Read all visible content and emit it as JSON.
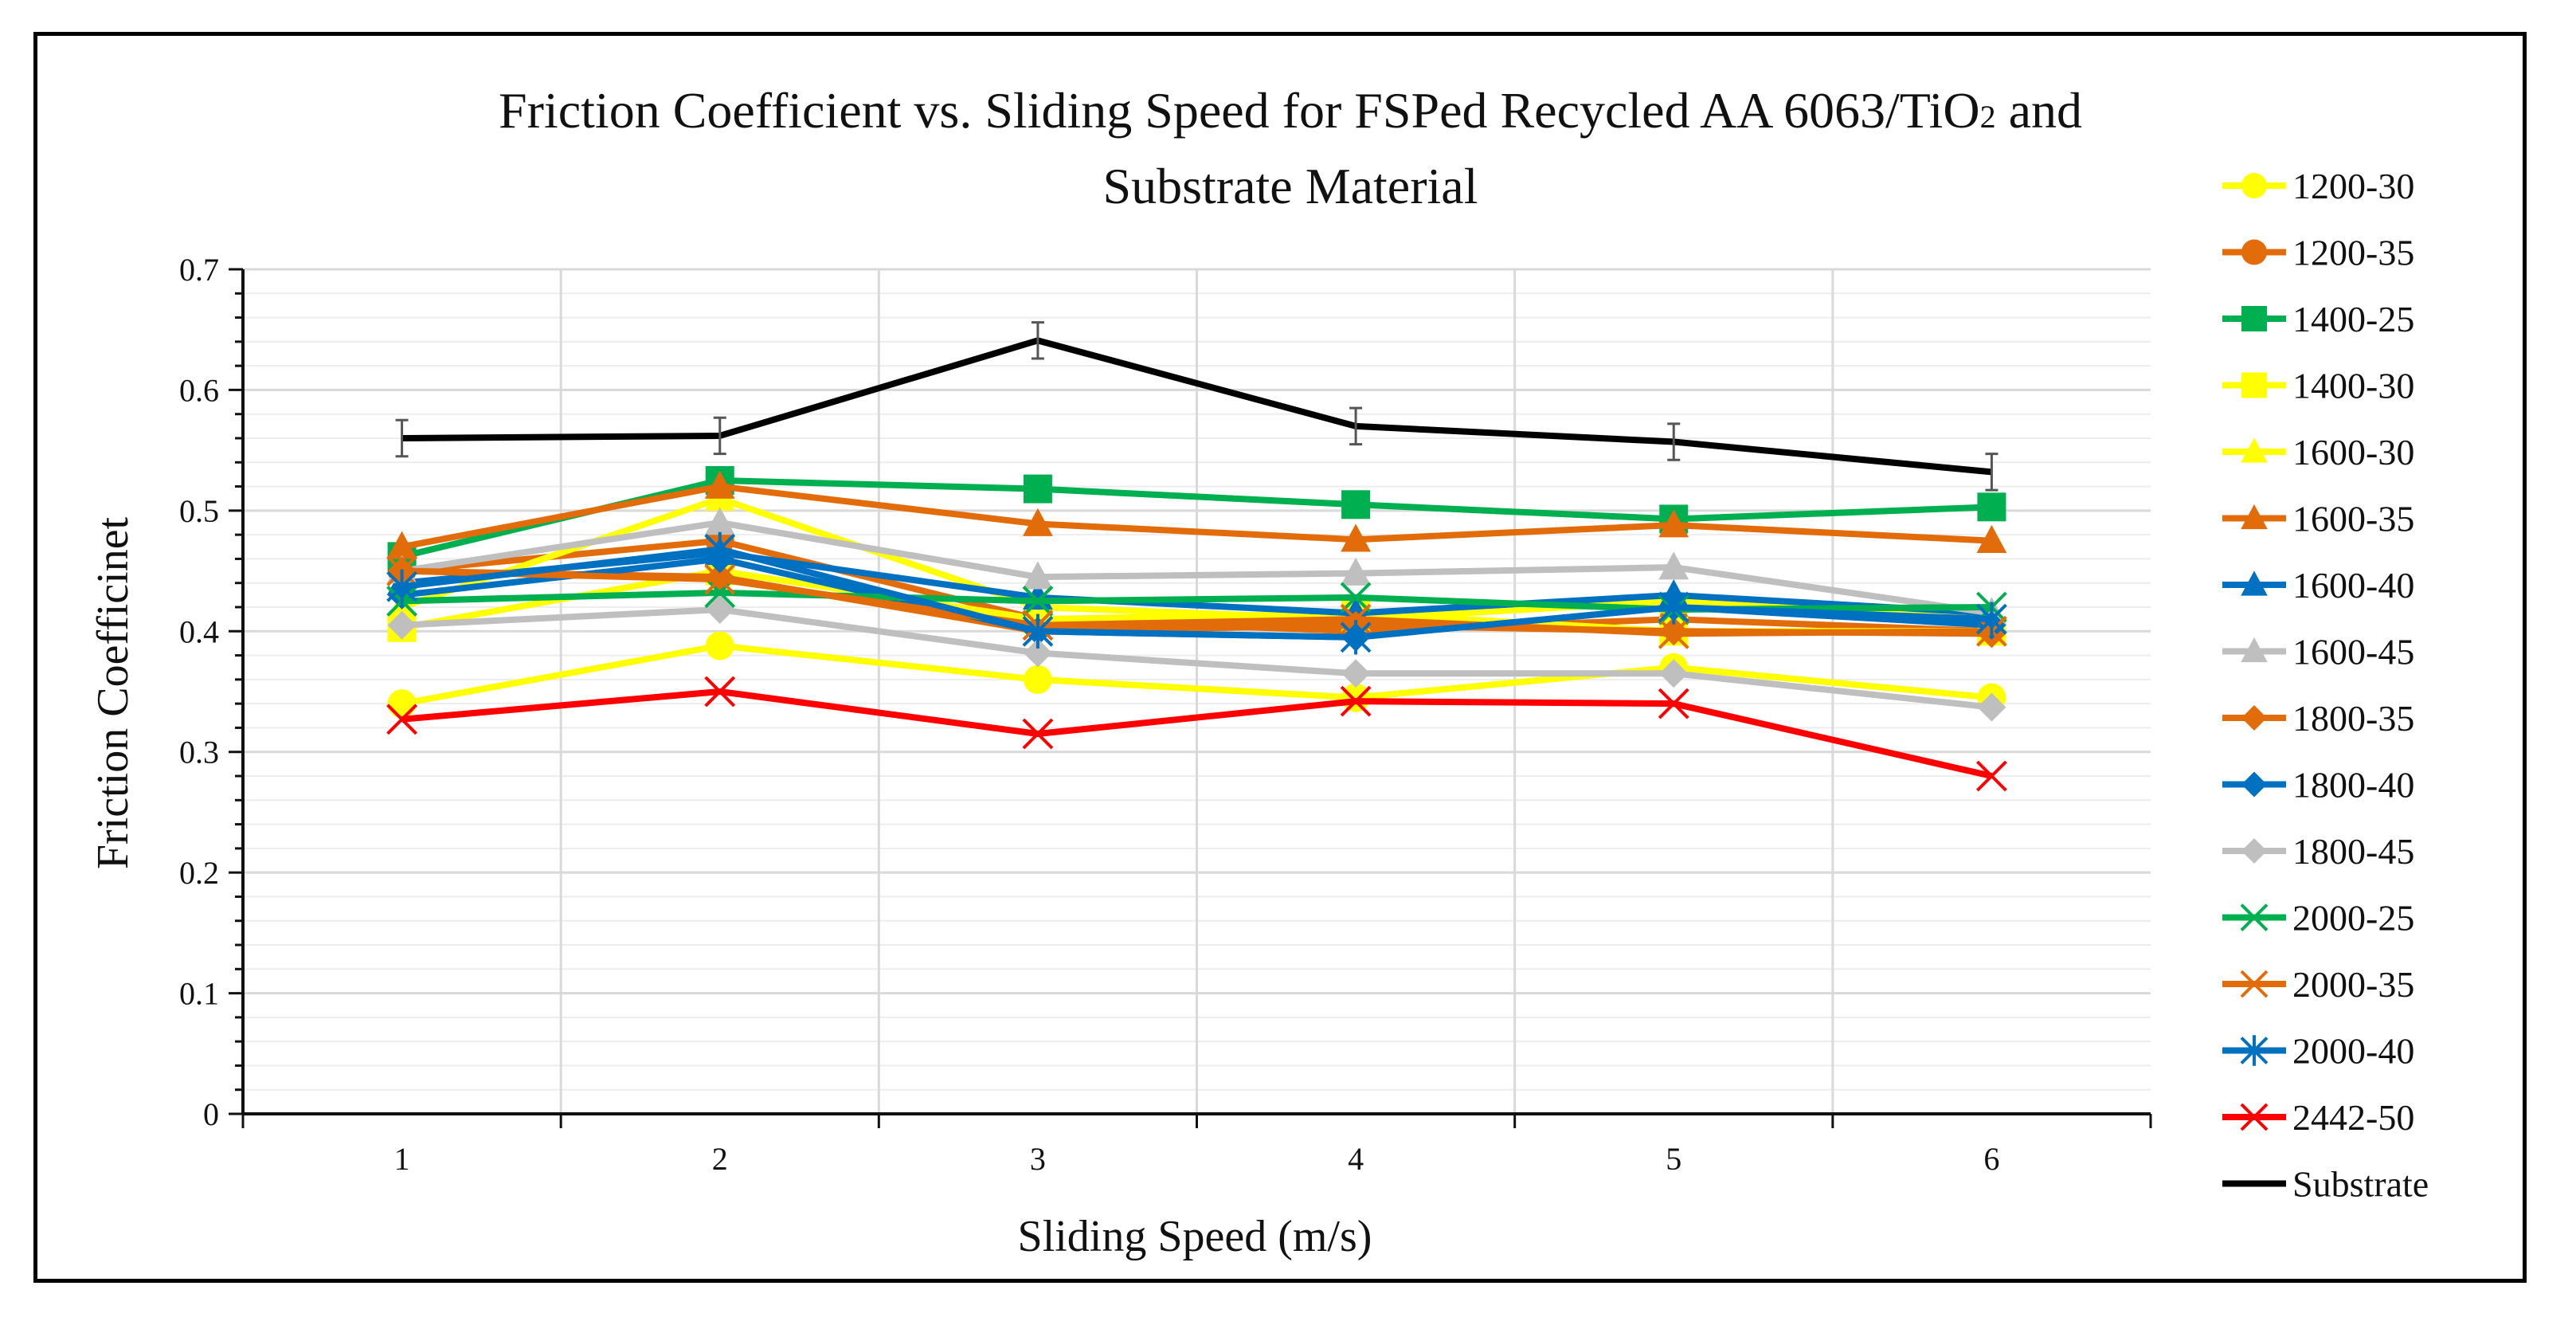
{
  "chart_data": {
    "type": "line",
    "title_line1_pre": "Friction Coefficient vs. Sliding Speed for FSPed Recycled AA 6063/TiO",
    "title_line1_sub": "2",
    "title_line1_post": " and",
    "title_line2": "Substrate Material",
    "xlabel": "Sliding Speed (m/s)",
    "ylabel": "Friction Coefficinet",
    "x": [
      1,
      2,
      3,
      4,
      5,
      6
    ],
    "x_tick_labels": [
      "1",
      "2",
      "3",
      "4",
      "5",
      "6"
    ],
    "ylim": [
      0,
      0.7
    ],
    "y_ticks": [
      0,
      0.1,
      0.2,
      0.3,
      0.4,
      0.5,
      0.6,
      0.7
    ],
    "y_tick_labels": [
      "0",
      "0.1",
      "0.2",
      "0.3",
      "0.4",
      "0.5",
      "0.6",
      "0.7"
    ],
    "grid": true,
    "legend_position": "right",
    "series": [
      {
        "name": "1200-30",
        "color": "#FFFF00",
        "marker": "circle",
        "values": [
          0.34,
          0.388,
          0.36,
          0.345,
          0.37,
          0.345
        ]
      },
      {
        "name": "1200-35",
        "color": "#E36C0A",
        "marker": "circle",
        "values": [
          0.45,
          0.475,
          0.41,
          0.4,
          0.41,
          0.4
        ]
      },
      {
        "name": "1400-25",
        "color": "#00B050",
        "marker": "square",
        "values": [
          0.462,
          0.525,
          0.518,
          0.505,
          0.493,
          0.503
        ]
      },
      {
        "name": "1400-30",
        "color": "#FFFF00",
        "marker": "square",
        "values": [
          0.403,
          0.45,
          0.41,
          0.415,
          0.4,
          0.4
        ]
      },
      {
        "name": "1600-30",
        "color": "#FFFF00",
        "marker": "triangle",
        "values": [
          0.42,
          0.51,
          0.42,
          0.41,
          0.425,
          0.415
        ]
      },
      {
        "name": "1600-35",
        "color": "#E36C0A",
        "marker": "triangle",
        "values": [
          0.47,
          0.52,
          0.489,
          0.476,
          0.488,
          0.475
        ]
      },
      {
        "name": "1600-40",
        "color": "#0070C0",
        "marker": "triangle",
        "values": [
          0.44,
          0.465,
          0.428,
          0.415,
          0.43,
          0.415
        ]
      },
      {
        "name": "1600-45",
        "color": "#BFBFBF",
        "marker": "triangle",
        "values": [
          0.45,
          0.49,
          0.445,
          0.448,
          0.453,
          0.415
        ]
      },
      {
        "name": "1800-35",
        "color": "#E36C0A",
        "marker": "diamond",
        "values": [
          0.45,
          0.445,
          0.4,
          0.405,
          0.4,
          0.398
        ]
      },
      {
        "name": "1800-40",
        "color": "#0070C0",
        "marker": "diamond",
        "values": [
          0.43,
          0.46,
          0.4,
          0.395,
          0.42,
          0.405
        ]
      },
      {
        "name": "1800-45",
        "color": "#BFBFBF",
        "marker": "diamond",
        "values": [
          0.405,
          0.418,
          0.382,
          0.365,
          0.365,
          0.337
        ]
      },
      {
        "name": "2000-25",
        "color": "#00B050",
        "marker": "x",
        "values": [
          0.425,
          0.432,
          0.425,
          0.428,
          0.418,
          0.42
        ]
      },
      {
        "name": "2000-35",
        "color": "#E36C0A",
        "marker": "x",
        "values": [
          0.45,
          0.443,
          0.405,
          0.41,
          0.398,
          0.4
        ]
      },
      {
        "name": "2000-40",
        "color": "#0070C0",
        "marker": "asterisk",
        "values": [
          0.437,
          0.468,
          0.4,
          0.395,
          0.42,
          0.41
        ]
      },
      {
        "name": "2442-50",
        "color": "#FF0000",
        "marker": "x",
        "values": [
          0.327,
          0.35,
          0.315,
          0.342,
          0.34,
          0.28
        ]
      },
      {
        "name": "Substrate",
        "color": "#000000",
        "marker": "none",
        "values": [
          0.56,
          0.562,
          0.641,
          0.57,
          0.557,
          0.532
        ],
        "error": [
          0.015,
          0.015,
          0.015,
          0.015,
          0.015,
          0.015
        ]
      }
    ]
  }
}
